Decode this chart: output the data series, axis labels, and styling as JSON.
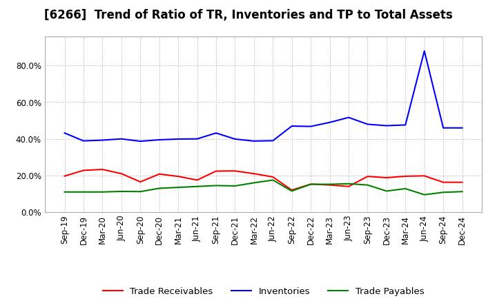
{
  "title": "[6266]  Trend of Ratio of TR, Inventories and TP to Total Assets",
  "x_labels": [
    "Sep-19",
    "Dec-19",
    "Mar-20",
    "Jun-20",
    "Sep-20",
    "Dec-20",
    "Mar-21",
    "Jun-21",
    "Sep-21",
    "Dec-21",
    "Mar-22",
    "Jun-22",
    "Sep-22",
    "Dec-22",
    "Mar-23",
    "Jun-23",
    "Sep-23",
    "Dec-23",
    "Mar-24",
    "Jun-24",
    "Sep-24",
    "Dec-24"
  ],
  "trade_receivables": [
    0.197,
    0.228,
    0.233,
    0.21,
    0.165,
    0.208,
    0.195,
    0.175,
    0.224,
    0.225,
    0.21,
    0.192,
    0.12,
    0.153,
    0.148,
    0.14,
    0.195,
    0.188,
    0.196,
    0.198,
    0.163,
    0.163
  ],
  "inventories": [
    0.432,
    0.389,
    0.393,
    0.4,
    0.387,
    0.395,
    0.399,
    0.4,
    0.432,
    0.399,
    0.388,
    0.39,
    0.47,
    0.468,
    0.49,
    0.517,
    0.48,
    0.472,
    0.476,
    0.88,
    0.46,
    0.46
  ],
  "trade_payables": [
    0.11,
    0.11,
    0.11,
    0.113,
    0.112,
    0.13,
    0.135,
    0.14,
    0.145,
    0.143,
    0.16,
    0.175,
    0.115,
    0.152,
    0.152,
    0.155,
    0.148,
    0.115,
    0.128,
    0.095,
    0.108,
    0.112
  ],
  "tr_color": "#FF0000",
  "inv_color": "#0000FF",
  "tp_color": "#008000",
  "background_color": "#FFFFFF",
  "plot_bg_color": "#FFFFFF",
  "grid_color": "#AAAAAA",
  "ylim": [
    0.0,
    0.96
  ],
  "yticks": [
    0.0,
    0.2,
    0.4,
    0.6,
    0.8
  ],
  "legend_labels": [
    "Trade Receivables",
    "Inventories",
    "Trade Payables"
  ],
  "title_fontsize": 12,
  "tick_fontsize": 8.5,
  "legend_fontsize": 9.5
}
